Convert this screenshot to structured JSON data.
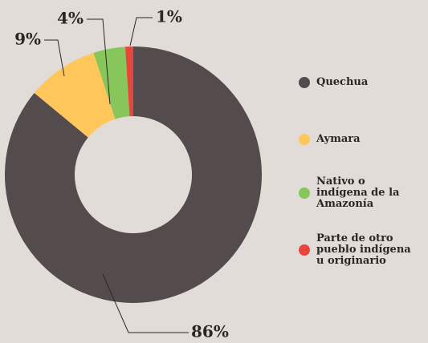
{
  "chart_data": {
    "type": "donut",
    "categories": [
      "Quechua",
      "Aymara",
      "Nativo o indígena de la Amazonía",
      "Parte de otro pueblo indígena u originario"
    ],
    "values": [
      86,
      9,
      4,
      1
    ],
    "value_labels": [
      "86%",
      "9%",
      "4%",
      "1%"
    ],
    "colors": [
      "#544c4c",
      "#ffc65c",
      "#86c65a",
      "#e8453c"
    ]
  }
}
